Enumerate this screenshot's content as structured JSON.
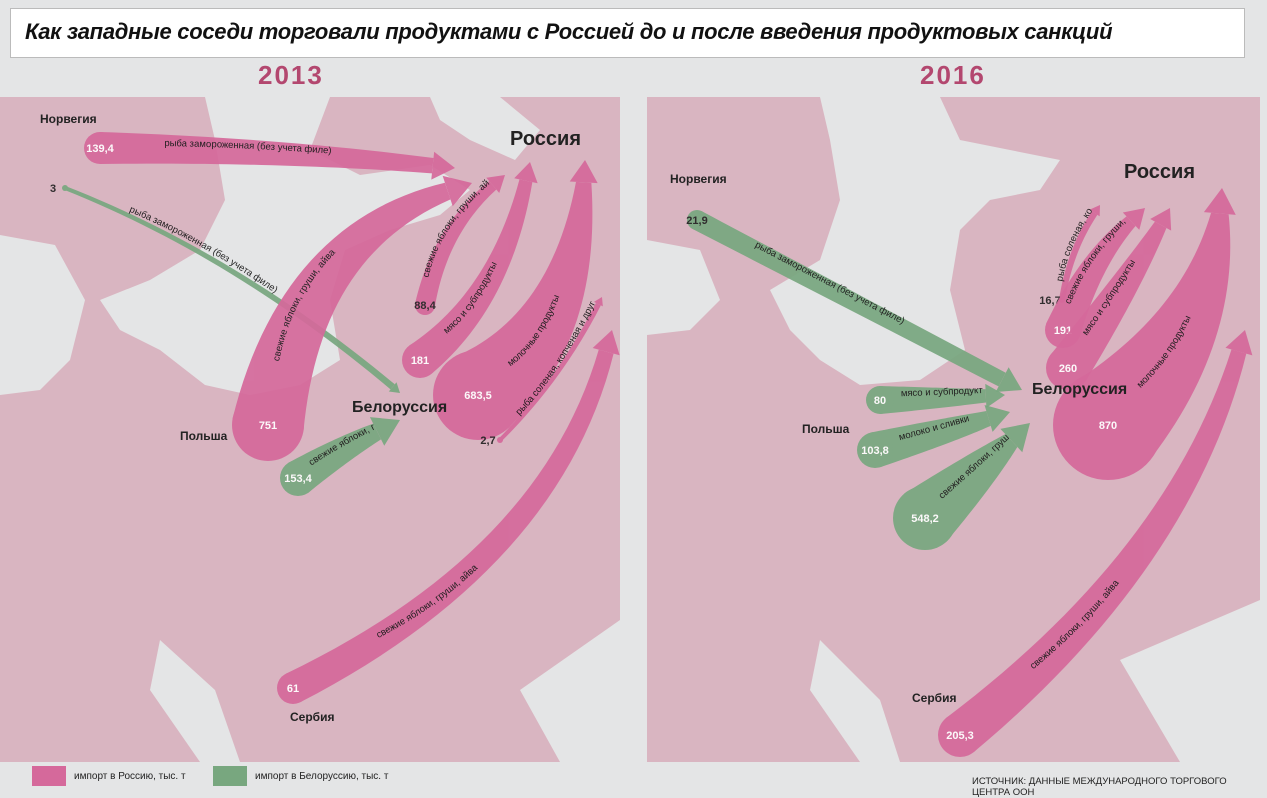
{
  "title": "Как западные соседи торговали продуктами с Россией до и после введения продуктовых санкций",
  "colors": {
    "import_russia": "#d5699b",
    "import_belarus": "#78a77f",
    "land": "#d9b5c1",
    "sea": "#e4e5e6",
    "year": "#b3476f"
  },
  "panels": [
    {
      "year": "2013",
      "countries": {
        "norway": "Норвегия",
        "russia": "Россия",
        "belarus": "Белоруссия",
        "poland": "Польша",
        "serbia": "Сербия"
      },
      "flows": [
        {
          "value": "139,4",
          "product": "рыба замороженная (без учета филе)",
          "to": "russia"
        },
        {
          "value": "3",
          "product": "рыба замороженная (без учета филе)",
          "to": "belarus"
        },
        {
          "value": "751",
          "product": "свежие яблоки, груши, айва",
          "to": "russia"
        },
        {
          "value": "88,4",
          "product": "свежие яблоки, груши, айва",
          "to": "russia"
        },
        {
          "value": "181",
          "product": "мясо и субпродукты",
          "to": "russia"
        },
        {
          "value": "683,5",
          "product": "молочные продукты",
          "to": "russia"
        },
        {
          "value": "2,7",
          "product": "рыба соленая, копченая и другие рыбные продукты",
          "to": "russia"
        },
        {
          "value": "153,4",
          "product": "свежие яблоки, груши, айва",
          "to": "belarus"
        },
        {
          "value": "61",
          "product": "свежие яблоки, груши, айва",
          "to": "russia"
        }
      ]
    },
    {
      "year": "2016",
      "countries": {
        "norway": "Норвегия",
        "russia": "Россия",
        "belarus": "Белоруссия",
        "poland": "Польша",
        "serbia": "Сербия"
      },
      "flows": [
        {
          "value": "21,9",
          "product": "рыба замороженная (без учета филе)",
          "to": "belarus"
        },
        {
          "value": "80",
          "product": "мясо и субпродукты",
          "to": "belarus"
        },
        {
          "value": "103,8",
          "product": "молоко и сливки",
          "to": "belarus"
        },
        {
          "value": "548,2",
          "product": "свежие яблоки, груши, айва",
          "to": "belarus"
        },
        {
          "value": "16,7",
          "product": "рыба соленая, копченая и другие рыбные продукты",
          "to": "russia"
        },
        {
          "value": "191",
          "product": "свежие яблоки, груши, айва",
          "to": "russia"
        },
        {
          "value": "260",
          "product": "мясо и субпродукты",
          "to": "russia"
        },
        {
          "value": "870",
          "product": "молочные продукты",
          "to": "russia"
        },
        {
          "value": "205,3",
          "product": "свежие яблоки, груши, айва",
          "to": "russia"
        }
      ]
    }
  ],
  "legend": {
    "russia": "импорт в Россию, тыс. т",
    "belarus": "импорт в Белоруссию, тыс. т"
  },
  "source": "ИСТОЧНИК: ДАННЫЕ МЕЖДУНАРОДНОГО ТОРГОВОГО ЦЕНТРА ООН"
}
